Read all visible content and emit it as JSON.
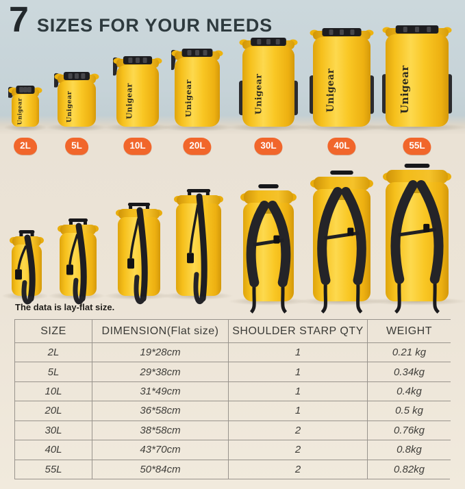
{
  "title": {
    "number": "7",
    "text": "SIZES FOR YOUR NEEDS"
  },
  "brand": "Unigear",
  "sizes": [
    {
      "label": "2L"
    },
    {
      "label": "5L"
    },
    {
      "label": "10L"
    },
    {
      "label": "20L"
    },
    {
      "label": "30L"
    },
    {
      "label": "40L"
    },
    {
      "label": "55L"
    }
  ],
  "note": "The data is lay-flat size.",
  "table": {
    "headers": [
      "SIZE",
      "DIMENSION(Flat size)",
      "SHOULDER STARP QTY",
      "WEIGHT"
    ],
    "rows": [
      [
        "2L",
        "19*28cm",
        "1",
        "0.21 kg"
      ],
      [
        "5L",
        "29*38cm",
        "1",
        "0.34kg"
      ],
      [
        "10L",
        "31*49cm",
        "1",
        "0.4kg"
      ],
      [
        "20L",
        "36*58cm",
        "1",
        "0.5 kg"
      ],
      [
        "30L",
        "38*58cm",
        "2",
        "0.76kg"
      ],
      [
        "40L",
        "43*70cm",
        "2",
        "0.8kg"
      ],
      [
        "55L",
        "50*84cm",
        "2",
        "0.82kg"
      ]
    ]
  },
  "colors": {
    "badge_orange": "#F1662B",
    "bag_yellow": "#F8C41E",
    "wall_blue": "#C8D5D9",
    "floor_cream": "#ECE4D7",
    "title_text": "#2E3A3E",
    "table_line": "#98938C"
  }
}
